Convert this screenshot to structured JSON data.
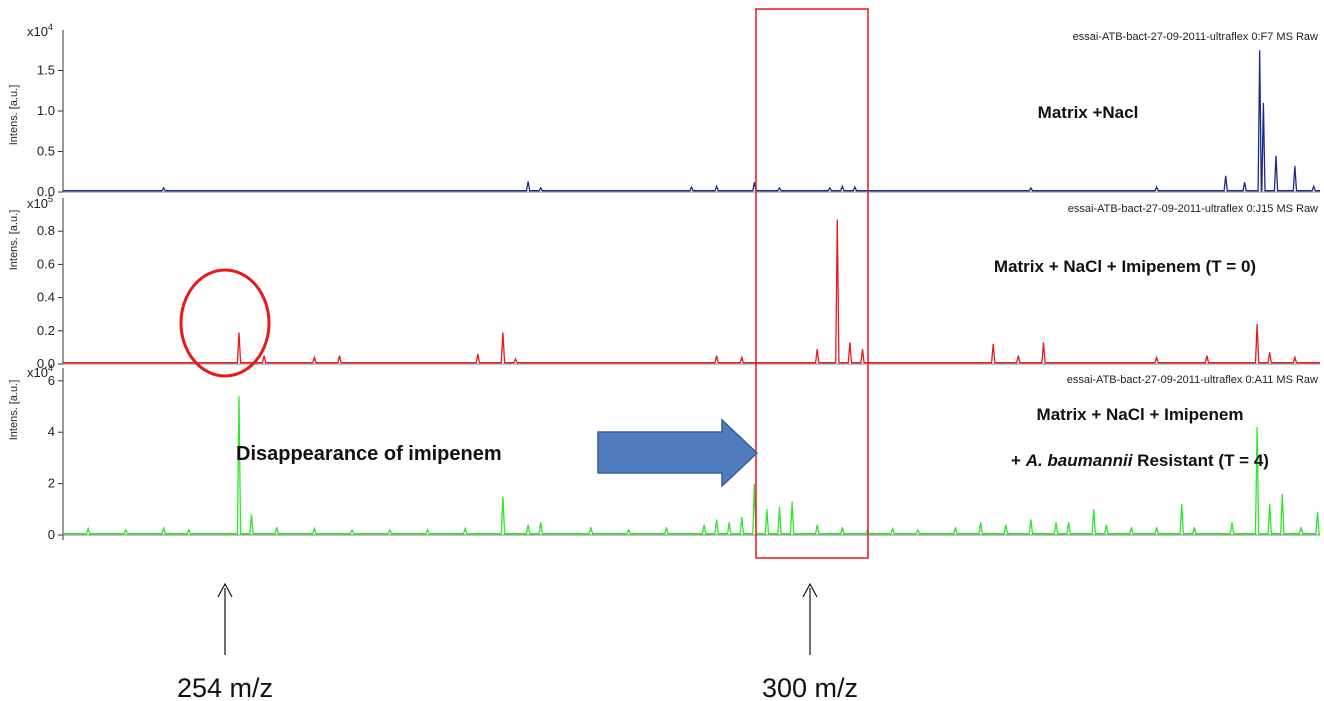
{
  "chart_data": [
    {
      "type": "line",
      "sample_id": "essai-ATB-bact-27-09-2011-ultraflex 0:F7 MS Raw",
      "ylabel": "Intens. [a.u.]",
      "y_multiplier": "x10",
      "y_exponent": "4",
      "ylim": [
        0,
        2.0
      ],
      "yticks": [
        "0.0",
        "0.5",
        "1.0",
        "1.5"
      ],
      "annotation": "Matrix +Nacl",
      "color": "#1c2a85",
      "peaks": [
        {
          "x": 0.08,
          "y": 0.05
        },
        {
          "x": 0.37,
          "y": 0.13
        },
        {
          "x": 0.38,
          "y": 0.05
        },
        {
          "x": 0.5,
          "y": 0.06
        },
        {
          "x": 0.52,
          "y": 0.07
        },
        {
          "x": 0.55,
          "y": 0.12
        },
        {
          "x": 0.57,
          "y": 0.05
        },
        {
          "x": 0.61,
          "y": 0.05
        },
        {
          "x": 0.62,
          "y": 0.07
        },
        {
          "x": 0.63,
          "y": 0.06
        },
        {
          "x": 0.77,
          "y": 0.05
        },
        {
          "x": 0.87,
          "y": 0.06
        },
        {
          "x": 0.925,
          "y": 0.2
        },
        {
          "x": 0.94,
          "y": 0.12
        },
        {
          "x": 0.952,
          "y": 1.75
        },
        {
          "x": 0.955,
          "y": 1.1
        },
        {
          "x": 0.965,
          "y": 0.45
        },
        {
          "x": 0.98,
          "y": 0.32
        },
        {
          "x": 0.995,
          "y": 0.07
        }
      ]
    },
    {
      "type": "line",
      "sample_id": "essai-ATB-bact-27-09-2011-ultraflex 0:J15 MS Raw",
      "ylabel": "Intens. [a.u.]",
      "y_multiplier": "x10",
      "y_exponent": "5",
      "ylim": [
        0,
        1.0
      ],
      "yticks": [
        "0.0",
        "0.2",
        "0.4",
        "0.6",
        "0.8"
      ],
      "annotation": "Matrix + NaCl + Imipenem (T = 0)",
      "color": "#e8191b",
      "peaks": [
        {
          "x": 0.14,
          "y": 0.19
        },
        {
          "x": 0.16,
          "y": 0.05
        },
        {
          "x": 0.2,
          "y": 0.04
        },
        {
          "x": 0.22,
          "y": 0.05
        },
        {
          "x": 0.33,
          "y": 0.06
        },
        {
          "x": 0.35,
          "y": 0.19
        },
        {
          "x": 0.36,
          "y": 0.03
        },
        {
          "x": 0.52,
          "y": 0.05
        },
        {
          "x": 0.54,
          "y": 0.04
        },
        {
          "x": 0.6,
          "y": 0.09
        },
        {
          "x": 0.616,
          "y": 0.87
        },
        {
          "x": 0.626,
          "y": 0.13
        },
        {
          "x": 0.636,
          "y": 0.09
        },
        {
          "x": 0.74,
          "y": 0.12
        },
        {
          "x": 0.76,
          "y": 0.05
        },
        {
          "x": 0.78,
          "y": 0.13
        },
        {
          "x": 0.87,
          "y": 0.04
        },
        {
          "x": 0.91,
          "y": 0.05
        },
        {
          "x": 0.95,
          "y": 0.24
        },
        {
          "x": 0.96,
          "y": 0.07
        },
        {
          "x": 0.98,
          "y": 0.04
        }
      ]
    },
    {
      "type": "line",
      "sample_id": "essai-ATB-bact-27-09-2011-ultraflex 0:A11 MS Raw",
      "ylabel": "Intens. [a.u.]",
      "y_multiplier": "x10",
      "y_exponent": "4",
      "ylim": [
        0,
        6.5
      ],
      "yticks": [
        "0",
        "2",
        "4",
        "6"
      ],
      "annotation_line1": "Matrix + NaCl + Imipenem",
      "annotation_line2_prefix": "+ ",
      "annotation_line2_italic": "A. baumannii",
      "annotation_line2_suffix": " Resistant (T = 4)",
      "color": "#2ee62e",
      "peaks": [
        {
          "x": 0.02,
          "y": 0.25
        },
        {
          "x": 0.05,
          "y": 0.2
        },
        {
          "x": 0.08,
          "y": 0.3
        },
        {
          "x": 0.1,
          "y": 0.2
        },
        {
          "x": 0.14,
          "y": 5.4
        },
        {
          "x": 0.15,
          "y": 0.8
        },
        {
          "x": 0.17,
          "y": 0.3
        },
        {
          "x": 0.2,
          "y": 0.25
        },
        {
          "x": 0.23,
          "y": 0.2
        },
        {
          "x": 0.26,
          "y": 0.2
        },
        {
          "x": 0.29,
          "y": 0.2
        },
        {
          "x": 0.32,
          "y": 0.25
        },
        {
          "x": 0.35,
          "y": 1.5
        },
        {
          "x": 0.37,
          "y": 0.4
        },
        {
          "x": 0.38,
          "y": 0.5
        },
        {
          "x": 0.42,
          "y": 0.3
        },
        {
          "x": 0.45,
          "y": 0.2
        },
        {
          "x": 0.48,
          "y": 0.3
        },
        {
          "x": 0.51,
          "y": 0.4
        },
        {
          "x": 0.52,
          "y": 0.6
        },
        {
          "x": 0.53,
          "y": 0.5
        },
        {
          "x": 0.54,
          "y": 0.7
        },
        {
          "x": 0.55,
          "y": 2.0
        },
        {
          "x": 0.56,
          "y": 1.0
        },
        {
          "x": 0.57,
          "y": 1.1
        },
        {
          "x": 0.58,
          "y": 1.3
        },
        {
          "x": 0.6,
          "y": 0.4
        },
        {
          "x": 0.62,
          "y": 0.3
        },
        {
          "x": 0.64,
          "y": 0.2
        },
        {
          "x": 0.66,
          "y": 0.25
        },
        {
          "x": 0.68,
          "y": 0.2
        },
        {
          "x": 0.71,
          "y": 0.3
        },
        {
          "x": 0.73,
          "y": 0.5
        },
        {
          "x": 0.75,
          "y": 0.4
        },
        {
          "x": 0.77,
          "y": 0.6
        },
        {
          "x": 0.79,
          "y": 0.5
        },
        {
          "x": 0.8,
          "y": 0.5
        },
        {
          "x": 0.82,
          "y": 1.0
        },
        {
          "x": 0.83,
          "y": 0.4
        },
        {
          "x": 0.85,
          "y": 0.3
        },
        {
          "x": 0.87,
          "y": 0.3
        },
        {
          "x": 0.89,
          "y": 1.2
        },
        {
          "x": 0.9,
          "y": 0.3
        },
        {
          "x": 0.93,
          "y": 0.5
        },
        {
          "x": 0.95,
          "y": 4.2
        },
        {
          "x": 0.96,
          "y": 1.2
        },
        {
          "x": 0.97,
          "y": 1.6
        },
        {
          "x": 0.985,
          "y": 0.3
        },
        {
          "x": 0.998,
          "y": 0.9
        }
      ]
    }
  ],
  "callout_text": "Disappearance of imipenem",
  "marker_254_label": "254 m/z",
  "marker_300_label": "300 m/z",
  "highlight_color": "#e8191b",
  "arrow_color": "#4f7bbf"
}
